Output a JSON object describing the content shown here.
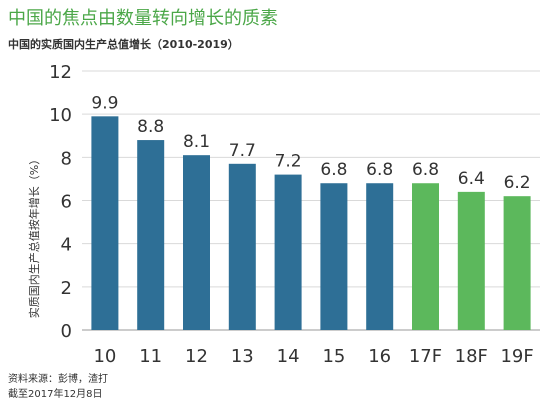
{
  "title": "中国的焦点由数量转向增长的质素",
  "subtitle": "中国的实质国内生产总值增长（2010-2019）",
  "source_line": "资料来源：彭博，渣打",
  "date_line": "截至2017年12月8日",
  "colors": {
    "title": "#4ba748",
    "actual": "#2e6f96",
    "forecast": "#5cb85c",
    "grid": "#d9d9d9",
    "text": "#333333"
  },
  "chart_data": {
    "type": "bar",
    "categories": [
      "10",
      "11",
      "12",
      "13",
      "14",
      "15",
      "16",
      "17F",
      "18F",
      "19F"
    ],
    "values": [
      9.9,
      8.8,
      8.1,
      7.7,
      7.2,
      6.8,
      6.8,
      6.8,
      6.4,
      6.2
    ],
    "data_labels": [
      "9.9",
      "8.8",
      "8.1",
      "7.7",
      "7.2",
      "6.8",
      "6.8",
      "6.8",
      "6.4",
      "6.2"
    ],
    "bar_kinds": [
      "actual",
      "actual",
      "actual",
      "actual",
      "actual",
      "actual",
      "actual",
      "forecast",
      "forecast",
      "forecast"
    ],
    "ylabel": "实质国内生产总值按年增长（%）",
    "ylim": [
      0,
      12
    ],
    "y_ticks": [
      0,
      2,
      4,
      6,
      8,
      10,
      12
    ],
    "grid": true
  }
}
